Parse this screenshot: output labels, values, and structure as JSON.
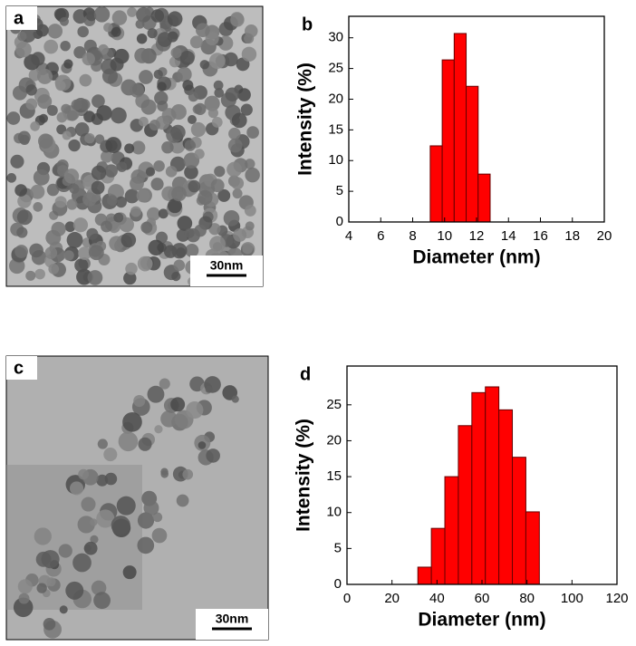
{
  "images": [
    {
      "label": "a",
      "scale_bar": "30nm"
    },
    {
      "label": "c",
      "scale_bar": "30nm"
    }
  ],
  "chart_data": [
    {
      "type": "histogram",
      "panel_label": "b",
      "x_label": "Diameter (nm)",
      "y_label": "Intensity (%)",
      "bins": [
        9.1,
        9.85,
        10.6,
        11.35,
        12.1,
        12.85
      ],
      "values": [
        12.4,
        26.4,
        30.7,
        22.1,
        7.8
      ],
      "color": "#ff0000",
      "xlim": [
        4,
        20
      ],
      "ylim": [
        0,
        33.5
      ],
      "xticks": [
        4,
        6,
        8,
        10,
        12,
        14,
        16,
        18,
        20
      ],
      "yticks": [
        0,
        5,
        10,
        15,
        20,
        25,
        30
      ]
    },
    {
      "type": "histogram",
      "panel_label": "d",
      "x_label": "Diameter (nm)",
      "y_label": "Intensity (%)",
      "bins": [
        31.5,
        37.5,
        43.5,
        49.5,
        55.5,
        61.5,
        67.5,
        73.5,
        79.5,
        85.5
      ],
      "values": [
        2.4,
        7.8,
        15.0,
        22.1,
        26.7,
        27.5,
        24.3,
        17.7,
        10.1
      ],
      "color": "#ff0000",
      "xlim": [
        0,
        120
      ],
      "ylim": [
        0,
        30.4
      ],
      "xticks": [
        0,
        20,
        40,
        60,
        80,
        100,
        120
      ],
      "yticks": [
        0,
        5,
        10,
        15,
        20,
        25
      ]
    }
  ]
}
